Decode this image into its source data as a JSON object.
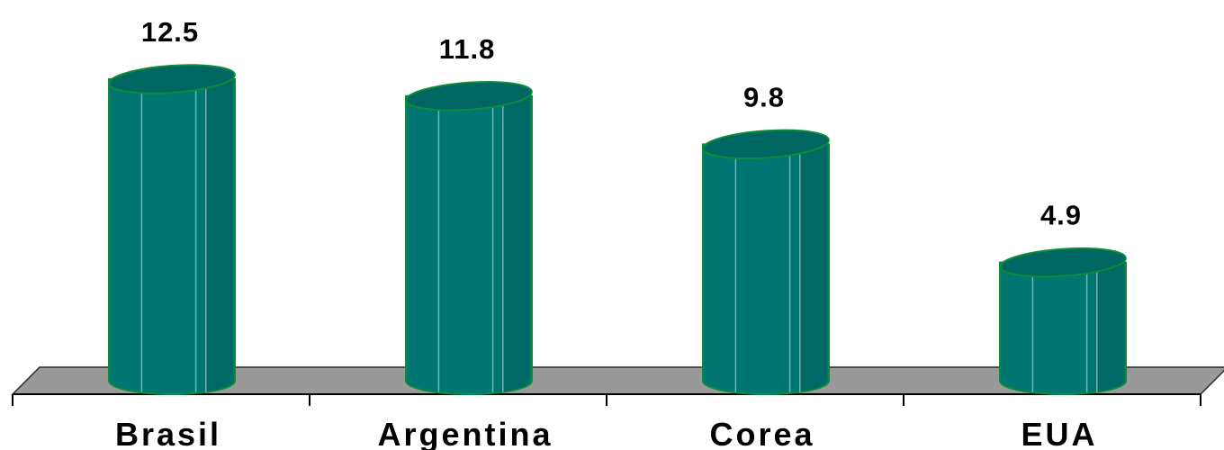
{
  "chart_data": {
    "type": "bar",
    "style": "3d-cylinder",
    "categories": [
      "Brasil",
      "Argentina",
      "Corea",
      "EUA"
    ],
    "values": [
      12.5,
      11.8,
      9.8,
      4.9
    ],
    "data_labels": [
      "12.5",
      "11.8",
      "9.8",
      "4.9"
    ],
    "ylim": [
      0,
      12.5
    ],
    "grid": false,
    "legend": "none",
    "colors": {
      "bar": "#007672",
      "bar_top": "#006662",
      "bar_outline": "#0a8c3a",
      "bar_highlight": "#8fc4c0",
      "floor": "#999999",
      "floor_outline": "#2b2b2b",
      "axis": "#000000"
    }
  }
}
